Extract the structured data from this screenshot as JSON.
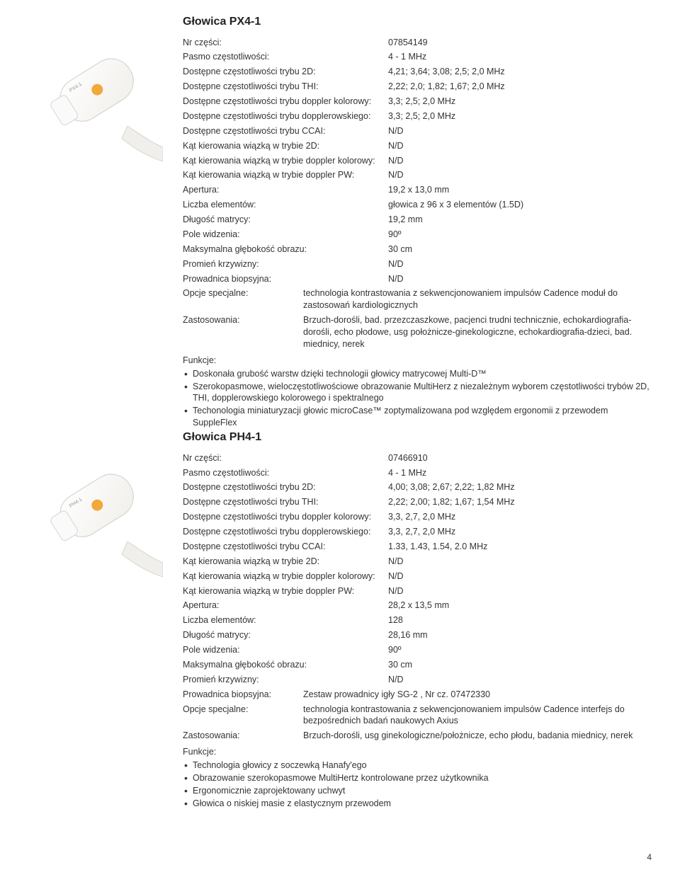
{
  "page_number": "4",
  "products": [
    {
      "title": "Głowica PX4-1",
      "probe_label": "PX4-1",
      "specs": [
        {
          "label": "Nr części:",
          "value": "07854149"
        },
        {
          "label": "Pasmo częstotliwości:",
          "value": "4 - 1 MHz"
        },
        {
          "label": "Dostępne częstotliwości trybu 2D:",
          "value": "4,21; 3,64; 3,08; 2,5; 2,0 MHz"
        },
        {
          "label": "Dostępne częstotliwości trybu THI:",
          "value": "2,22; 2,0; 1,82; 1,67; 2,0 MHz"
        },
        {
          "label": "Dostępne częstotliwości trybu doppler kolorowy:",
          "value": "3,3; 2,5; 2,0 MHz"
        },
        {
          "label": "Dostępne częstotliwości trybu dopplerowskiego:",
          "value": "3,3; 2,5; 2,0 MHz"
        },
        {
          "label": "Dostępne częstotliwości trybu CCAI:",
          "value": "N/D"
        },
        {
          "label": "Kąt kierowania wiązką w trybie 2D:",
          "value": "N/D"
        },
        {
          "label": "Kąt kierowania wiązką w trybie doppler kolorowy:",
          "value": "N/D"
        },
        {
          "label": "Kąt kierowania wiązką w trybie doppler PW:",
          "value": "N/D"
        },
        {
          "label": "Apertura:",
          "value": "19,2 x 13,0 mm"
        },
        {
          "label": "Liczba elementów:",
          "value": "głowica z 96 x 3 elementów (1.5D)"
        },
        {
          "label": "Długość matrycy:",
          "value": "19,2 mm"
        },
        {
          "label": "Pole widzenia:",
          "value": "90º"
        },
        {
          "label": "Maksymalna głębokość obrazu:",
          "value": "30 cm"
        },
        {
          "label": "Promień krzywizny:",
          "value": "N/D"
        },
        {
          "label": "Prowadnica biopsyjna:",
          "value": "N/D"
        }
      ],
      "wide_specs": [
        {
          "label": "Opcje specjalne:",
          "value": "technologia kontrastowania z sekwencjonowaniem impulsów Cadence moduł do zastosowań kardiologicznych"
        },
        {
          "label": "Zastosowania:",
          "value": "Brzuch-dorośli, bad. przezczaszkowe, pacjenci trudni technicznie, echokardiografia-dorośli, echo płodowe, usg położnicze-ginekologiczne, echokardiografia-dzieci, bad. miednicy, nerek"
        }
      ],
      "func_head": "Funkcje:",
      "funcs": [
        "Doskonała grubość warstw dzięki technologii głowicy matrycowej Multi-D™",
        "Szerokopasmowe, wieloczęstotliwościowe obrazowanie MultiHerz z niezależnym wyborem częstotliwości trybów 2D, THI, dopplerowskiego kolorowego i spektralnego",
        "Techonologia miniaturyzacji głowic microCase™ zoptymalizowana pod względem ergonomii z przewodem SuppleFlex"
      ]
    },
    {
      "title": "Głowica PH4-1",
      "probe_label": "PH4-1",
      "specs": [
        {
          "label": "Nr części:",
          "value": "07466910"
        },
        {
          "label": "Pasmo częstotliwości:",
          "value": "4 - 1 MHz"
        },
        {
          "label": "Dostępne częstotliwości trybu 2D:",
          "value": "4,00; 3,08; 2,67; 2,22; 1,82 MHz"
        },
        {
          "label": "Dostępne częstotliwości trybu THI:",
          "value": "2,22; 2,00; 1,82; 1,67; 1,54 MHz"
        },
        {
          "label": "Dostępne częstotliwości trybu doppler kolorowy:",
          "value": "3,3, 2,7, 2,0 MHz"
        },
        {
          "label": "Dostępne częstotliwości trybu dopplerowskiego:",
          "value": "3,3, 2,7, 2,0 MHz"
        },
        {
          "label": "Dostępne częstotliwości trybu CCAI:",
          "value": "1.33, 1.43, 1.54, 2.0 MHz"
        },
        {
          "label": "Kąt kierowania wiązką w trybie 2D:",
          "value": "N/D"
        },
        {
          "label": "Kąt kierowania wiązką w trybie doppler kolorowy:",
          "value": "N/D"
        },
        {
          "label": "Kąt kierowania wiązką w trybie doppler PW:",
          "value": "N/D"
        },
        {
          "label": "Apertura:",
          "value": "28,2 x 13,5 mm"
        },
        {
          "label": "Liczba elementów:",
          "value": "128"
        },
        {
          "label": "Długość matrycy:",
          "value": "28,16 mm"
        },
        {
          "label": "Pole widzenia:",
          "value": "90º"
        },
        {
          "label": "Maksymalna głębokość obrazu:",
          "value": "30 cm"
        },
        {
          "label": "Promień krzywizny:",
          "value": "N/D"
        }
      ],
      "wide_specs": [
        {
          "label": "Prowadnica biopsyjna:",
          "value": "Zestaw prowadnicy igły SG-2 , Nr cz. 07472330"
        },
        {
          "label": "Opcje specjalne:",
          "value": "technologia kontrastowania z sekwencjonowaniem impulsów Cadence interfejs do bezpośrednich badań naukowych Axius"
        },
        {
          "label": "Zastosowania:",
          "value": "Brzuch-dorośli, usg ginekologiczne/położnicze, echo płodu, badania miednicy, nerek"
        }
      ],
      "func_head": "Funkcje:",
      "funcs": [
        "Technologia głowicy z soczewką Hanafy'ego",
        "Obrazowanie szerokopasmowe MultiHertz kontrolowane przez użytkownika",
        "Ergonomicznie zaprojektowany uchwyt",
        "Głowica o niskiej masie z elastycznym przewodem"
      ]
    }
  ],
  "style": {
    "accent_color": "#f2a83b",
    "body_color": "#f1efeb",
    "stroke_color": "#d8d5d0",
    "text_color": "#333333",
    "bg_color": "#ffffff",
    "title_fontsize": 16,
    "body_fontsize": 12.5
  }
}
